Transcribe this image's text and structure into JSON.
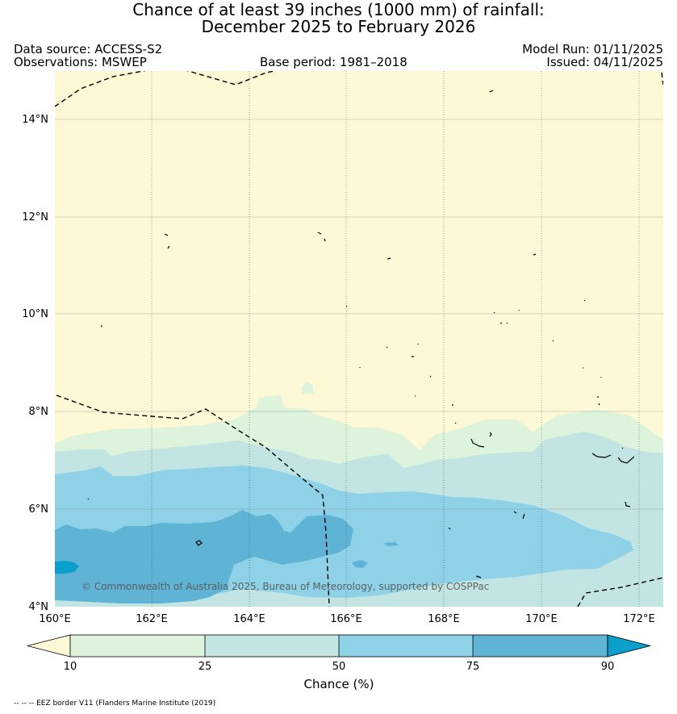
{
  "header": {
    "title_line1": "Chance of at least 39 inches (1000  mm) of rainfall:",
    "title_line2": "December 2025 to February 2026",
    "data_source": "Data source: ACCESS-S2",
    "observations": "Observations: MSWEP",
    "base_period": "Base period: 1981–2018",
    "model_run": "Model Run: 01/11/2025",
    "issued": "Issued: 04/11/2025"
  },
  "map": {
    "lat_labels": [
      "4°N",
      "6°N",
      "8°N",
      "10°N",
      "12°N",
      "14°N"
    ],
    "lon_labels": [
      "160°E",
      "162°E",
      "164°E",
      "166°E",
      "168°E",
      "170°E",
      "172°E"
    ],
    "copyright": "© Commonwealth of Australia 2025, Bureau of Meteorology, supported by COSPPac"
  },
  "colorbar": {
    "ticks": [
      "10",
      "25",
      "50",
      "75",
      "90"
    ],
    "label": "Chance (%)",
    "colors": [
      "#fdf9d6",
      "#ddf3db",
      "#c2e4e3",
      "#8fd2e8",
      "#5fb4d6",
      "#0ba0cc"
    ]
  },
  "footnote": "-- -- -- EEZ border V11 (Flanders Marine Institute (2019)"
}
